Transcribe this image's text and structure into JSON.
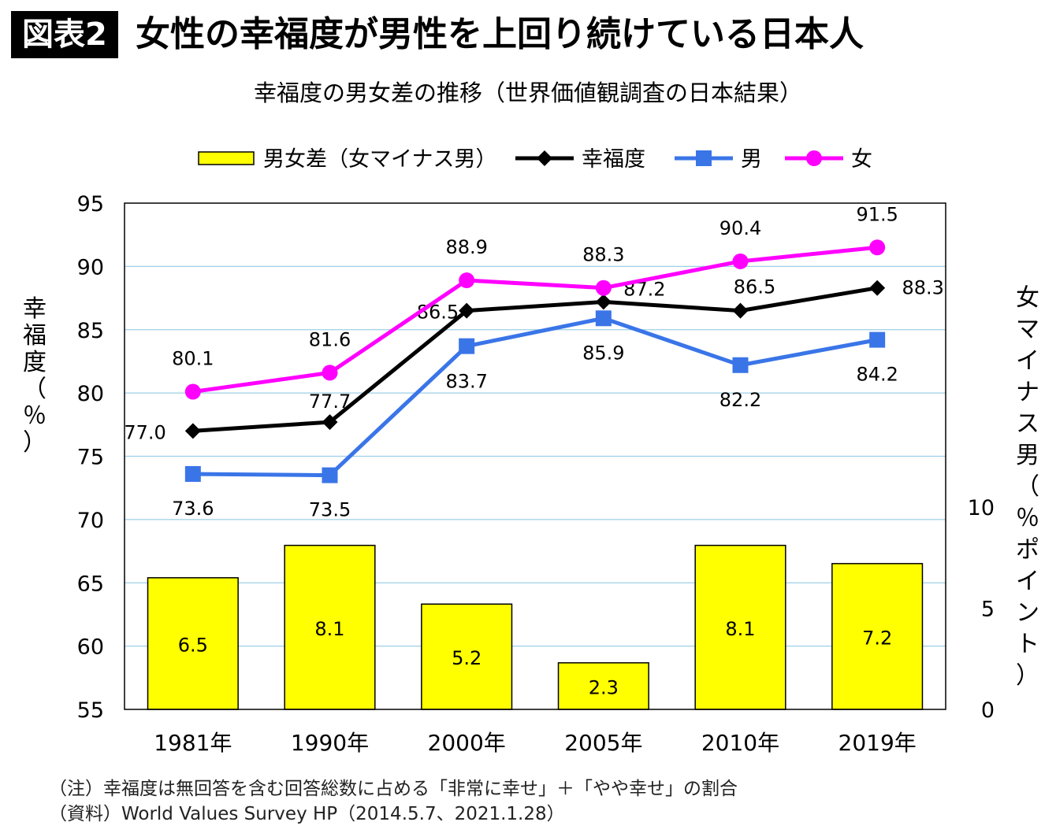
{
  "header": {
    "badge": "図表2",
    "title": "女性の幸福度が男性を上回り続けている日本人"
  },
  "chart_data": {
    "type": "bar+line",
    "title": "幸福度の男女差の推移（世界価値観調査の日本結果）",
    "categories": [
      "1981年",
      "1990年",
      "2000年",
      "2005年",
      "2010年",
      "2019年"
    ],
    "y_left": {
      "label": "幸福度（％）",
      "ylim": [
        55,
        95
      ],
      "ticks": [
        "55",
        "60",
        "65",
        "70",
        "75",
        "80",
        "85",
        "90",
        "95"
      ]
    },
    "y_right": {
      "label": "女マイナス男（％ポイント）",
      "ylim": [
        0,
        25
      ],
      "ticks": [
        "0",
        "5",
        "10"
      ]
    },
    "bars": {
      "name": "男女差（女マイナス男）",
      "axis": "right",
      "color": "#ffff00",
      "values": [
        6.5,
        8.1,
        5.2,
        2.3,
        8.1,
        7.2
      ],
      "labels": [
        "6.5",
        "8.1",
        "5.2",
        "2.3",
        "8.1",
        "7.2"
      ]
    },
    "series": [
      {
        "name": "幸福度",
        "color": "#000000",
        "marker": "diamond",
        "values": [
          77.0,
          77.7,
          86.5,
          87.2,
          86.5,
          88.3
        ],
        "labels": [
          "77.0",
          "77.7",
          "86.5",
          "87.2",
          "86.5",
          "88.3"
        ]
      },
      {
        "name": "男",
        "color": "#3a75e8",
        "marker": "square",
        "values": [
          73.6,
          73.5,
          83.7,
          85.9,
          82.2,
          84.2
        ],
        "labels": [
          "73.6",
          "73.5",
          "83.7",
          "85.9",
          "82.2",
          "84.2"
        ]
      },
      {
        "name": "女",
        "color": "#ff00ff",
        "marker": "circle",
        "values": [
          80.1,
          81.6,
          88.9,
          88.3,
          90.4,
          91.5
        ],
        "labels": [
          "80.1",
          "81.6",
          "88.9",
          "88.3",
          "90.4",
          "91.5"
        ]
      }
    ],
    "legend": "top",
    "grid": true
  },
  "notes": {
    "note": "（注）幸福度は無回答を含む回答総数に占める「非常に幸せ」＋「やや幸せ」の割合",
    "source": "（資料）World Values Survey HP（2014.5.7、2021.1.28）"
  }
}
